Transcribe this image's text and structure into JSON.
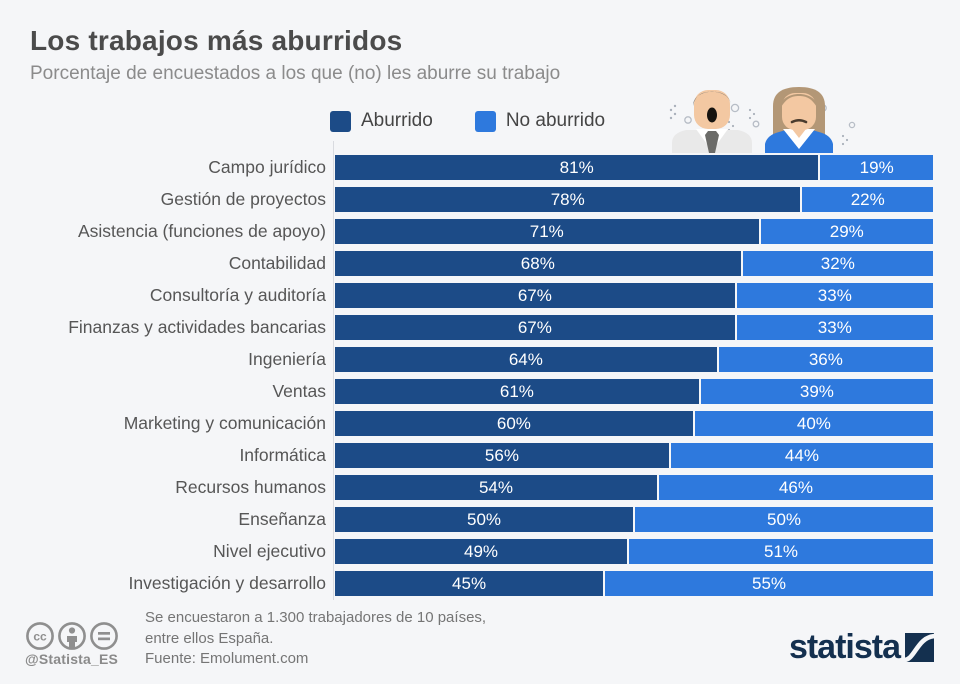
{
  "title": "Los trabajos más aburridos",
  "subtitle": "Porcentaje de encuestados a los que (no) les aburre su trabajo",
  "legend": {
    "items": [
      {
        "label": "Aburrido",
        "color": "#1c4b87"
      },
      {
        "label": "No aburrido",
        "color": "#2e79dd"
      }
    ]
  },
  "chart_data": {
    "type": "bar",
    "orientation": "horizontal",
    "stacked": true,
    "value_suffix": "%",
    "xlim": [
      0,
      100
    ],
    "categories": [
      "Campo jurídico",
      "Gestión de proyectos",
      "Asistencia (funciones de apoyo)",
      "Contabilidad",
      "Consultoría y auditoría",
      "Finanzas y actividades bancarias",
      "Ingeniería",
      "Ventas",
      "Marketing y comunicación",
      "Informática",
      "Recursos humanos",
      "Enseñanza",
      "Nivel ejecutivo",
      "Investigación y desarrollo"
    ],
    "series": [
      {
        "name": "Aburrido",
        "color": "#1c4b87",
        "values": [
          81,
          78,
          71,
          68,
          67,
          67,
          64,
          61,
          60,
          56,
          54,
          50,
          49,
          45
        ]
      },
      {
        "name": "No aburrido",
        "color": "#2e79dd",
        "values": [
          19,
          22,
          29,
          32,
          33,
          33,
          36,
          39,
          40,
          44,
          46,
          50,
          51,
          55
        ]
      }
    ]
  },
  "footer": {
    "note_line1": "Se encuestaron a 1.300 trabajadores de 10 países,",
    "note_line2": "entre ellos España.",
    "source": "Fuente: Emolument.com",
    "handle": "@Statista_ES",
    "brand": "statista",
    "license_icons": [
      "cc-icon",
      "attribution-person-icon",
      "no-derivatives-icon"
    ]
  }
}
